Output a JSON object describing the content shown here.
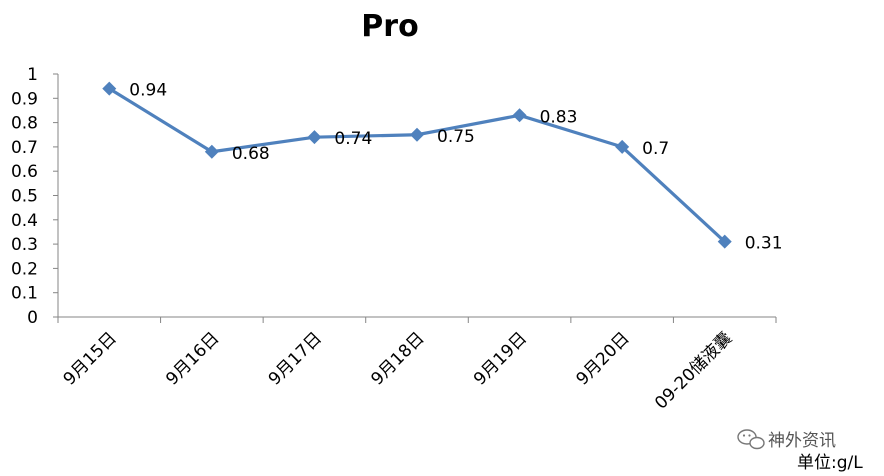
{
  "chart_data": {
    "type": "line",
    "title": "Pro",
    "categories": [
      "9月15日",
      "9月16日",
      "9月17日",
      "9月18日",
      "9月19日",
      "9月20日",
      "09-20储液囊"
    ],
    "values": [
      0.94,
      0.68,
      0.74,
      0.75,
      0.83,
      0.7,
      0.31
    ],
    "data_labels": [
      "0.94",
      "0.68",
      "0.74",
      "0.75",
      "0.83",
      "0.7",
      "0.31"
    ],
    "ylim": [
      0,
      1
    ],
    "yticks": [
      "0",
      "0.1",
      "0.2",
      "0.3",
      "0.4",
      "0.5",
      "0.6",
      "0.7",
      "0.8",
      "0.9",
      "1"
    ],
    "grid": false,
    "line_color": "#4F81BD"
  },
  "watermark": {
    "text": "神外资讯",
    "icon": "wechat-icon"
  },
  "unit_text": "单位:g/L"
}
